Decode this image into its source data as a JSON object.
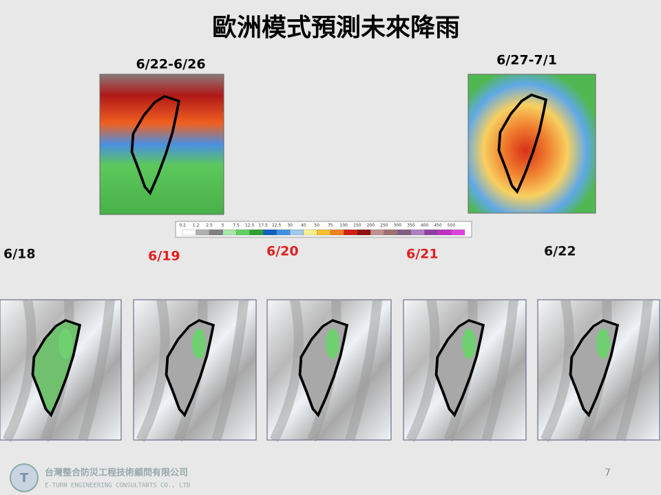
{
  "header": {
    "title": "歐洲模式預測未來降雨"
  },
  "period_maps": [
    {
      "label": "6/22-6/26"
    },
    {
      "label": "6/27-7/1"
    }
  ],
  "colorbar": {
    "labels": [
      "0.2",
      "1.2",
      "2.5",
      "5",
      "7.5",
      "12.5",
      "17.5",
      "22.5",
      "30",
      "40",
      "50",
      "75",
      "100",
      "150",
      "200",
      "250",
      "300",
      "350",
      "400",
      "450",
      "500"
    ]
  },
  "daily_labels": [
    "6/18",
    "6/19",
    "6/20",
    "6/21",
    "6/22"
  ],
  "footer": {
    "company": "台灣整合防災工程技術顧問有限公司",
    "company_en": "E-TURN ENGINEERING CONSULTANTS CO., LTD",
    "page": "7"
  }
}
